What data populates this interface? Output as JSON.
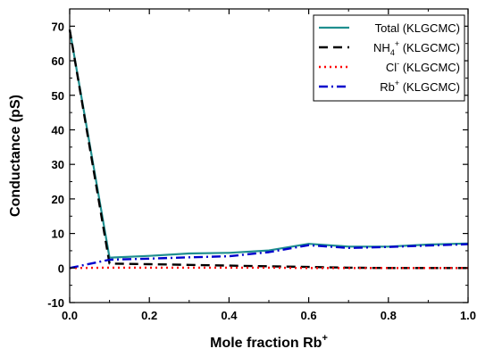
{
  "chart_data": {
    "type": "line",
    "xlabel": "Mole fraction Rb",
    "xlabel_sup": "+",
    "ylabel": "Conductance (pS)",
    "xlim": [
      0,
      1
    ],
    "ylim": [
      -10,
      75
    ],
    "xticks": [
      0.0,
      0.2,
      0.4,
      0.6,
      0.8,
      1.0
    ],
    "xtick_labels": [
      "0.0",
      "0.2",
      "0.4",
      "0.6",
      "0.8",
      "1.0"
    ],
    "yticks": [
      -10,
      0,
      10,
      20,
      30,
      40,
      50,
      60,
      70
    ],
    "ytick_labels": [
      "-10",
      "0",
      "10",
      "20",
      "30",
      "40",
      "50",
      "60",
      "70"
    ],
    "grid": false,
    "legend_position": "top-right",
    "series": [
      {
        "name": "Total (KLGCMC)",
        "legend": {
          "pre": "Total (KLGCMC)",
          "sub": "",
          "sup": "",
          "post": ""
        },
        "color": "#1f8f8f",
        "style": "solid",
        "x": [
          0.0,
          0.1,
          0.2,
          0.3,
          0.4,
          0.5,
          0.6,
          0.7,
          0.8,
          0.9,
          1.0
        ],
        "y": [
          69.0,
          3.0,
          3.5,
          4.2,
          4.4,
          5.1,
          7.0,
          6.2,
          6.2,
          6.8,
          7.1
        ]
      },
      {
        "name": "NH4+ (KLGCMC)",
        "legend": {
          "pre": "NH",
          "sub": "4",
          "sup": "+",
          "post": " (KLGCMC)"
        },
        "color": "#000000",
        "style": "dashed",
        "x": [
          0.0,
          0.1,
          0.2,
          0.3,
          0.4,
          0.5,
          0.6,
          0.7,
          0.8,
          0.9,
          1.0
        ],
        "y": [
          69.0,
          1.3,
          1.1,
          0.9,
          0.7,
          0.5,
          0.3,
          0.1,
          0.0,
          0.0,
          0.0
        ]
      },
      {
        "name": "Cl- (KLGCMC)",
        "legend": {
          "pre": "Cl",
          "sub": "",
          "sup": "-",
          "post": " (KLGCMC)"
        },
        "color": "#ff0000",
        "style": "dotted",
        "x": [
          0.0,
          0.1,
          0.2,
          0.3,
          0.4,
          0.5,
          0.6,
          0.7,
          0.8,
          0.9,
          1.0
        ],
        "y": [
          0.0,
          0.1,
          0.1,
          0.1,
          0.1,
          0.1,
          0.0,
          0.0,
          0.0,
          0.0,
          0.0
        ]
      },
      {
        "name": "Rb+ (KLGCMC)",
        "legend": {
          "pre": "Rb",
          "sub": "",
          "sup": "+",
          "post": " (KLGCMC)"
        },
        "color": "#0000cc",
        "style": "dashdot",
        "x": [
          0.0,
          0.1,
          0.2,
          0.3,
          0.4,
          0.5,
          0.6,
          0.7,
          0.8,
          0.9,
          1.0
        ],
        "y": [
          0.0,
          2.4,
          2.7,
          3.1,
          3.4,
          4.6,
          6.6,
          5.8,
          6.1,
          6.5,
          6.9
        ]
      }
    ]
  }
}
